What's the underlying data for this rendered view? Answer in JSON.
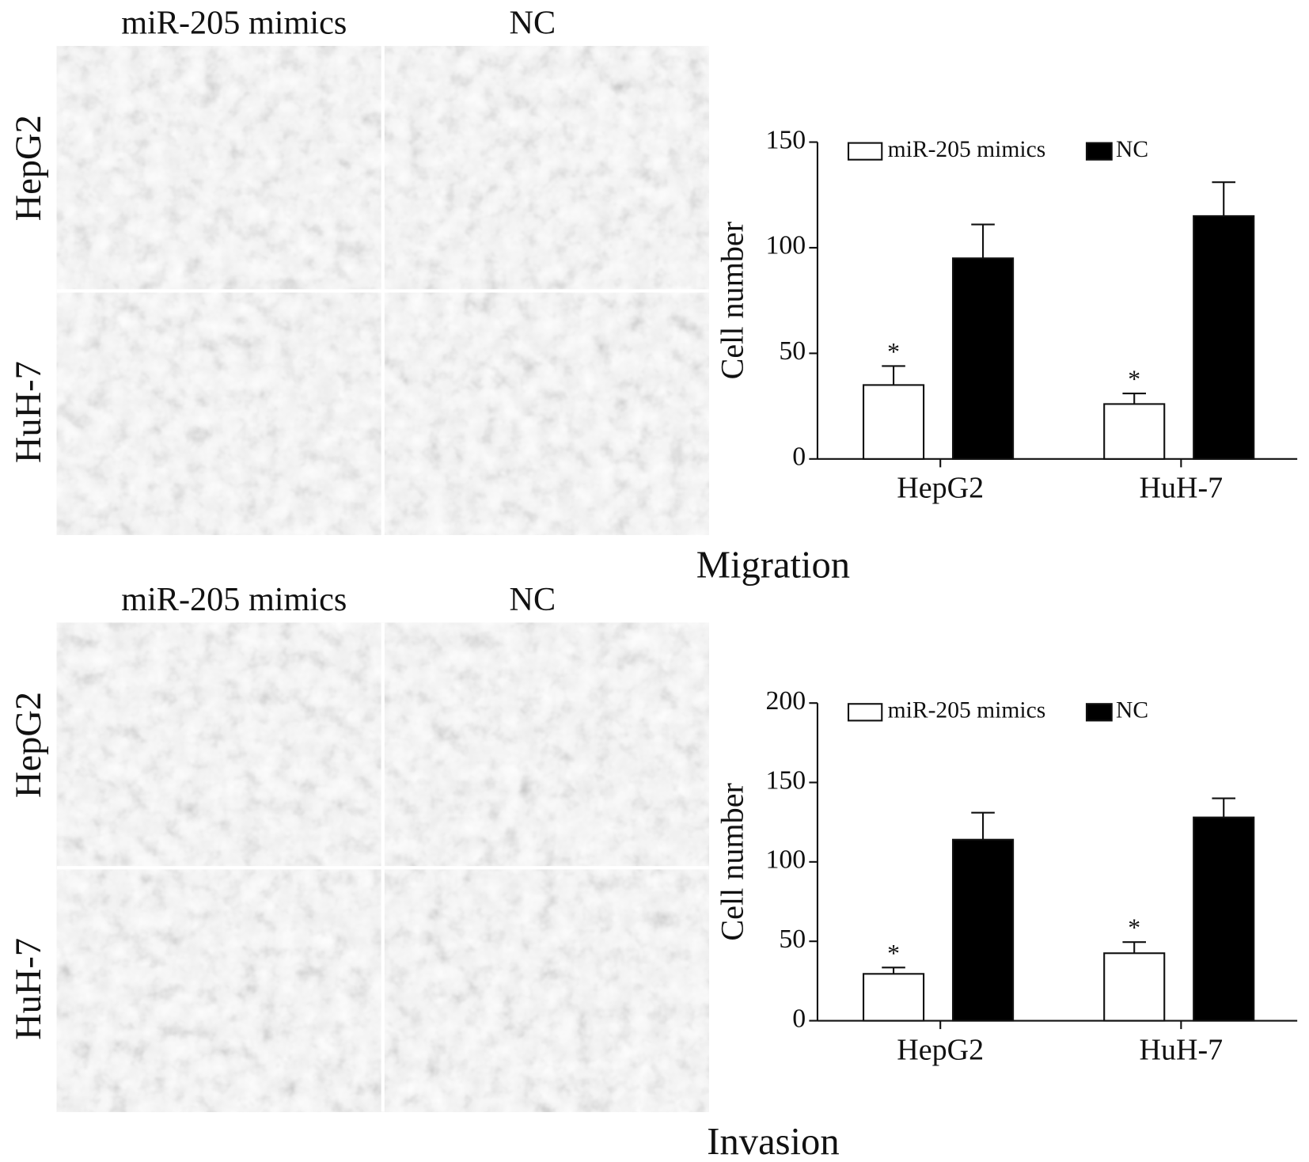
{
  "panels": [
    {
      "caption": "Migration",
      "column_labels": [
        "miR-205 mimics",
        "NC"
      ],
      "row_labels": [
        "HepG2",
        "HuH-7"
      ]
    },
    {
      "caption": "Invasion",
      "column_labels": [
        "miR-205 mimics",
        "NC"
      ],
      "row_labels": [
        "HepG2",
        "HuH-7"
      ]
    }
  ],
  "chart_data": [
    {
      "type": "bar",
      "y_label": "Cell number",
      "categories": [
        "HepG2",
        "HuH-7"
      ],
      "series": [
        {
          "name": "miR-205 mimics",
          "color": "#ffffff",
          "values": [
            35,
            26
          ],
          "errors": [
            9,
            5
          ],
          "markers": [
            "*",
            "*"
          ]
        },
        {
          "name": "NC",
          "color": "#000000",
          "values": [
            95,
            115
          ],
          "errors": [
            16,
            16
          ]
        }
      ],
      "ylim": [
        0,
        150
      ],
      "yticks": [
        0,
        50,
        100,
        150
      ],
      "legend": "top"
    },
    {
      "type": "bar",
      "y_label": "Cell number",
      "categories": [
        "HepG2",
        "HuH-7"
      ],
      "series": [
        {
          "name": "miR-205 mimics",
          "color": "#ffffff",
          "values": [
            29.5,
            42.5
          ],
          "errors": [
            4,
            7
          ],
          "markers": [
            "*",
            "*"
          ]
        },
        {
          "name": "NC",
          "color": "#000000",
          "values": [
            114,
            128
          ],
          "errors": [
            17,
            12
          ]
        }
      ],
      "ylim": [
        0,
        200
      ],
      "yticks": [
        0,
        50,
        100,
        150,
        200
      ],
      "legend": "top"
    }
  ]
}
